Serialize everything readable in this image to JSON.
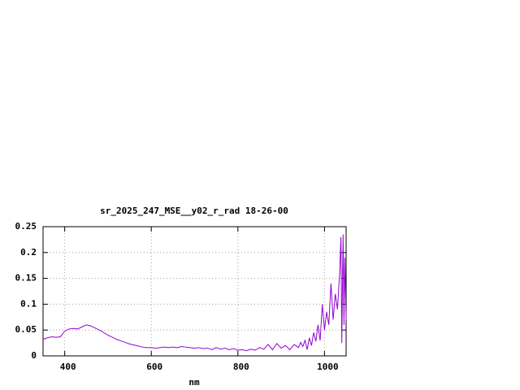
{
  "chart_data": {
    "type": "line",
    "title": "sr_2025_247_MSE__y02_r_rad 18-26-00",
    "x_label": "nm",
    "color": "#9400d3",
    "grid": true,
    "xlim": [
      350,
      1050
    ],
    "xticks": [
      400,
      600,
      800,
      1000
    ],
    "ylim": [
      0,
      0.25
    ],
    "yticks": [
      0,
      0.05,
      0.1,
      0.15,
      0.2,
      0.25
    ],
    "x": [
      350,
      360,
      370,
      380,
      390,
      400,
      410,
      420,
      430,
      440,
      450,
      460,
      470,
      480,
      490,
      500,
      510,
      520,
      530,
      540,
      550,
      560,
      570,
      580,
      590,
      600,
      610,
      620,
      630,
      640,
      650,
      660,
      670,
      680,
      690,
      700,
      710,
      720,
      730,
      740,
      750,
      760,
      770,
      780,
      790,
      800,
      810,
      820,
      830,
      840,
      850,
      860,
      870,
      880,
      890,
      900,
      910,
      920,
      930,
      940,
      945,
      950,
      955,
      960,
      965,
      970,
      975,
      980,
      985,
      990,
      995,
      1000,
      1005,
      1010,
      1015,
      1020,
      1025,
      1030,
      1035,
      1038,
      1040,
      1043,
      1045,
      1047,
      1050
    ],
    "values": [
      0.032,
      0.035,
      0.037,
      0.036,
      0.037,
      0.048,
      0.052,
      0.053,
      0.052,
      0.056,
      0.06,
      0.058,
      0.054,
      0.05,
      0.045,
      0.04,
      0.036,
      0.032,
      0.029,
      0.026,
      0.023,
      0.021,
      0.019,
      0.017,
      0.016,
      0.016,
      0.015,
      0.016,
      0.017,
      0.016,
      0.017,
      0.016,
      0.018,
      0.017,
      0.016,
      0.015,
      0.016,
      0.014,
      0.015,
      0.012,
      0.016,
      0.013,
      0.015,
      0.012,
      0.014,
      0.011,
      0.012,
      0.01,
      0.013,
      0.011,
      0.016,
      0.013,
      0.022,
      0.012,
      0.024,
      0.015,
      0.02,
      0.012,
      0.022,
      0.016,
      0.026,
      0.018,
      0.03,
      0.012,
      0.035,
      0.02,
      0.045,
      0.028,
      0.06,
      0.03,
      0.1,
      0.05,
      0.085,
      0.06,
      0.14,
      0.07,
      0.12,
      0.09,
      0.16,
      0.23,
      0.025,
      0.235,
      0.06,
      0.19,
      0.07
    ]
  }
}
